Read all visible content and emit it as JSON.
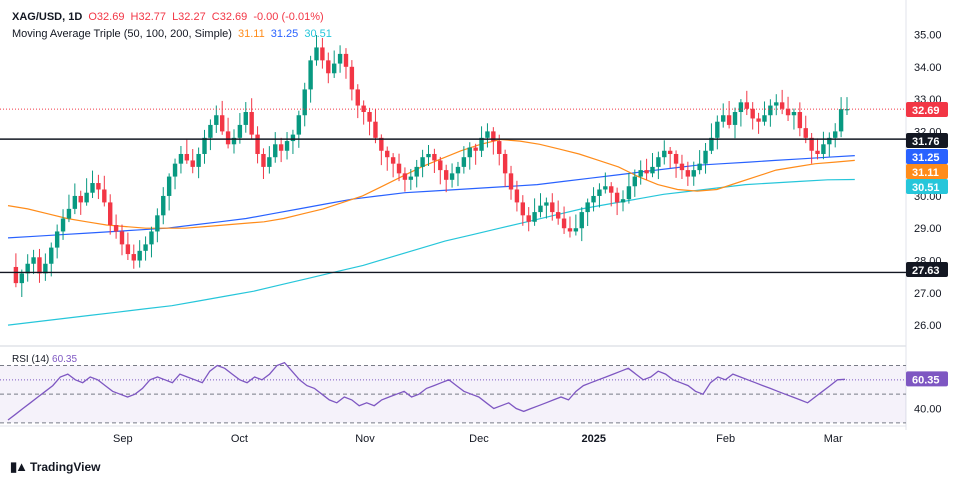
{
  "header": {
    "symbol": "XAG/USD, 1D",
    "ohlc": {
      "o": "O32.69",
      "h": "H32.77",
      "l": "L32.27",
      "c": "C32.69",
      "chg": "-0.00 (-0.01%)"
    },
    "ma_title": "Moving Average Triple (50, 100, 200, Simple)",
    "ma_values": [
      "31.11",
      "31.25",
      "30.51"
    ]
  },
  "rsi_header": {
    "label": "RSI (14)",
    "value": "60.35"
  },
  "colors": {
    "up": "#089981",
    "down": "#f23645",
    "ma50": "#ff8c1a",
    "ma100": "#2962ff",
    "ma200": "#26c6da",
    "rsi": "#7e57c2",
    "hline": "#131722"
  },
  "branding": {
    "name": "TradingView"
  },
  "chart_data": {
    "type": "candlestick",
    "price_axis": {
      "range": [
        25.6,
        35.45
      ],
      "ticks": [
        "35.00",
        "34.00",
        "33.00",
        "32.00",
        "31.00",
        "30.00",
        "29.00",
        "28.00",
        "27.00",
        "26.00"
      ]
    },
    "time_axis": {
      "labels": [
        "Sep",
        "Oct",
        "Nov",
        "Dec",
        "2025",
        "Feb",
        "Mar"
      ]
    },
    "horizontal_lines": [
      31.76,
      27.63
    ],
    "last_price": 32.69,
    "price_labels": [
      {
        "value": "32.69",
        "color": "#f23645"
      },
      {
        "value": "31.76",
        "color": "#131722"
      },
      {
        "value": "31.25",
        "color": "#2962ff"
      },
      {
        "value": "31.11",
        "color": "#ff8c1a"
      },
      {
        "value": "30.51",
        "color": "#26c6da"
      },
      {
        "value": "27.63",
        "color": "#131722"
      }
    ],
    "closes": [
      27.8,
      27.3,
      27.6,
      27.9,
      28.1,
      27.6,
      27.9,
      28.4,
      28.9,
      29.3,
      29.6,
      30.0,
      29.8,
      30.1,
      30.4,
      30.2,
      29.8,
      29.1,
      28.9,
      28.5,
      28.2,
      28.0,
      28.3,
      28.5,
      28.9,
      29.4,
      30.0,
      30.6,
      31.0,
      31.3,
      31.1,
      30.9,
      31.3,
      31.8,
      32.2,
      32.5,
      32.0,
      31.6,
      31.8,
      32.2,
      32.6,
      31.9,
      31.3,
      30.9,
      31.2,
      31.6,
      31.4,
      31.7,
      31.9,
      32.5,
      33.3,
      34.2,
      34.6,
      34.2,
      33.8,
      34.1,
      34.4,
      34.0,
      33.3,
      32.8,
      32.6,
      32.3,
      31.8,
      31.4,
      31.2,
      31.0,
      30.7,
      30.5,
      30.6,
      30.9,
      31.2,
      31.3,
      31.1,
      30.8,
      30.5,
      30.7,
      30.9,
      31.2,
      31.5,
      31.4,
      31.8,
      32.0,
      31.7,
      31.3,
      30.7,
      30.2,
      29.8,
      29.4,
      29.2,
      29.5,
      29.7,
      29.8,
      29.5,
      29.3,
      29.0,
      28.9,
      29.0,
      29.5,
      29.8,
      30.0,
      30.2,
      30.3,
      30.1,
      29.8,
      29.9,
      30.3,
      30.6,
      30.8,
      30.7,
      30.9,
      31.2,
      31.4,
      31.3,
      31.0,
      30.8,
      30.6,
      30.8,
      31.0,
      31.4,
      31.8,
      32.3,
      32.5,
      32.2,
      32.6,
      32.9,
      32.7,
      32.4,
      32.3,
      32.5,
      32.8,
      32.9,
      32.7,
      32.5,
      32.6,
      32.1,
      31.8,
      31.4,
      31.3,
      31.6,
      31.8,
      32.0,
      32.69,
      32.69
    ],
    "ma50": [
      29.7,
      29.6,
      29.45,
      29.3,
      29.2,
      29.1,
      29.05,
      29.0,
      29.0,
      29.0,
      29.05,
      29.1,
      29.15,
      29.2,
      29.3,
      29.45,
      29.6,
      29.8,
      30.0,
      30.3,
      30.6,
      30.9,
      31.15,
      31.4,
      31.6,
      31.75,
      31.7,
      31.6,
      31.45,
      31.3,
      31.1,
      30.9,
      30.6,
      30.35,
      30.2,
      30.15,
      30.2,
      30.4,
      30.6,
      30.8,
      30.9,
      31.0,
      31.05,
      31.1
    ],
    "ma100": [
      28.7,
      28.75,
      28.8,
      28.85,
      28.9,
      28.95,
      29.0,
      29.1,
      29.2,
      29.3,
      29.45,
      29.6,
      29.75,
      29.9,
      30.0,
      30.1,
      30.15,
      30.2,
      30.25,
      30.3,
      30.35,
      30.45,
      30.55,
      30.65,
      30.75,
      30.85,
      30.95,
      31.0,
      31.05,
      31.1,
      31.15,
      31.2,
      31.25
    ],
    "ma200": [
      26.0,
      26.1,
      26.2,
      26.3,
      26.4,
      26.5,
      26.6,
      26.75,
      26.9,
      27.05,
      27.25,
      27.45,
      27.65,
      27.85,
      28.1,
      28.35,
      28.6,
      28.8,
      29.0,
      29.2,
      29.4,
      29.6,
      29.75,
      29.9,
      30.05,
      30.15,
      30.25,
      30.35,
      30.4,
      30.45,
      30.5,
      30.51
    ],
    "rsi": {
      "range": [
        32,
        78
      ],
      "levels": [
        70,
        60,
        50,
        30
      ],
      "values": [
        32,
        36,
        40,
        44,
        48,
        52,
        56,
        62,
        64,
        60,
        58,
        62,
        60,
        56,
        52,
        50,
        48,
        50,
        54,
        60,
        62,
        60,
        58,
        64,
        62,
        60,
        58,
        66,
        70,
        68,
        64,
        60,
        58,
        62,
        60,
        64,
        70,
        72,
        66,
        60,
        56,
        54,
        50,
        46,
        44,
        48,
        46,
        42,
        44,
        42,
        46,
        48,
        50,
        52,
        48,
        50,
        54,
        56,
        58,
        60,
        56,
        52,
        50,
        48,
        44,
        40,
        42,
        44,
        40,
        38,
        40,
        42,
        44,
        46,
        48,
        46,
        52,
        56,
        58,
        60,
        62,
        64,
        66,
        68,
        64,
        60,
        62,
        66,
        64,
        60,
        58,
        56,
        52,
        50,
        58,
        62,
        60,
        64,
        62,
        60,
        58,
        56,
        54,
        52,
        50,
        48,
        46,
        44,
        48,
        52,
        56,
        60,
        60.35
      ]
    }
  }
}
